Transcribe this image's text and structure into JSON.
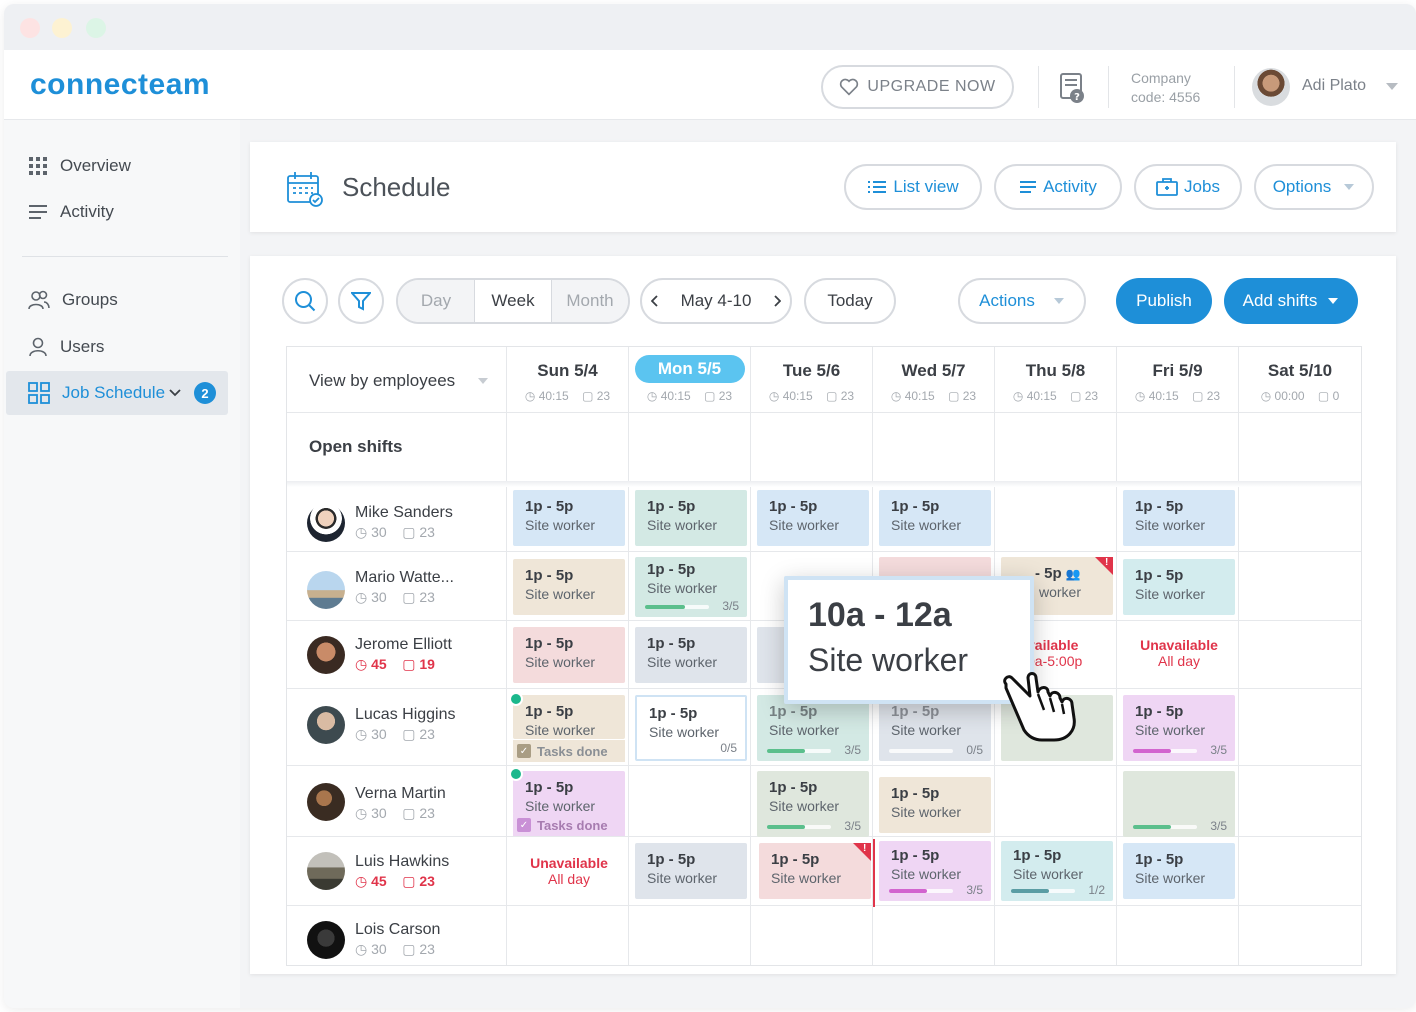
{
  "app": {
    "logo": "connecteam"
  },
  "topbar": {
    "upgrade_label": "UPGRADE NOW",
    "company_label": "Company",
    "company_code": "code: 4556",
    "user_name": "Adi Plato"
  },
  "sidebar": {
    "items": [
      {
        "label": "Overview",
        "icon": "grid-icon"
      },
      {
        "label": "Activity",
        "icon": "lines-icon"
      },
      {
        "label": "Groups",
        "icon": "groups-icon"
      },
      {
        "label": "Users",
        "icon": "user-icon"
      },
      {
        "label": "Job Schedule",
        "icon": "schedule-icon",
        "badge": "2"
      }
    ]
  },
  "header": {
    "title": "Schedule",
    "list_view": "List view",
    "activity": "Activity",
    "jobs": "Jobs",
    "options": "Options"
  },
  "toolbar": {
    "views": [
      "Day",
      "Week",
      "Month"
    ],
    "selected_view": "Week",
    "date_range": "May 4-10",
    "today": "Today",
    "actions": "Actions",
    "publish": "Publish",
    "add_shifts": "Add shifts"
  },
  "grid": {
    "view_by": "View by employees",
    "open_shifts": "Open shifts",
    "days": [
      {
        "name": "Sun 5/4",
        "hours": "40:15",
        "count": "23"
      },
      {
        "name": "Mon 5/5",
        "hours": "40:15",
        "count": "23",
        "today": true
      },
      {
        "name": "Tue 5/6",
        "hours": "40:15",
        "count": "23"
      },
      {
        "name": "Wed 5/7",
        "hours": "40:15",
        "count": "23"
      },
      {
        "name": "Thu 5/8",
        "hours": "40:15",
        "count": "23"
      },
      {
        "name": "Fri 5/9",
        "hours": "40:15",
        "count": "23"
      },
      {
        "name": "Sat 5/10",
        "hours": "00:00",
        "count": "0"
      }
    ],
    "employees": [
      {
        "name": "Mike Sanders",
        "hours": "30",
        "count": "23",
        "alert": false
      },
      {
        "name": "Mario Watte...",
        "hours": "30",
        "count": "23",
        "alert": false
      },
      {
        "name": "Jerome Elliott",
        "hours": "45",
        "count": "19",
        "alert": true
      },
      {
        "name": "Lucas Higgins",
        "hours": "30",
        "count": "23",
        "alert": false
      },
      {
        "name": "Verna Martin",
        "hours": "30",
        "count": "23",
        "alert": false
      },
      {
        "name": "Luis Hawkins",
        "hours": "45",
        "count": "23",
        "alert": true
      },
      {
        "name": "Lois Carson",
        "hours": "30",
        "count": "23",
        "alert": false
      }
    ],
    "shift_time": "1p - 5p",
    "shift_role": "Site worker",
    "tasks_done": "Tasks done",
    "unavailable": "Unavailable",
    "all_day": "All day",
    "partial_unavail_title": "vailable",
    "partial_unavail_time": "0a-5:00p",
    "partial_shift_time": "- 5p",
    "partial_role": "worker",
    "progress": {
      "p35": "3/5",
      "p05": "0/5",
      "p12": "1/2"
    }
  },
  "popup": {
    "time": "10a - 12a",
    "role": "Site worker"
  },
  "colors": {
    "accent": "#1e8fd8",
    "blue_shift": "#d6e7f6",
    "green_shift": "#d3e9e4",
    "beige_shift": "#efe6d8",
    "pink_shift": "#f4dbdc",
    "gray_shift": "#dfe4eb",
    "purple_shift": "#efd6f4",
    "teal_shift": "#d3ecee",
    "sage_shift": "#dfe7dd",
    "alert": "#e0344a"
  }
}
